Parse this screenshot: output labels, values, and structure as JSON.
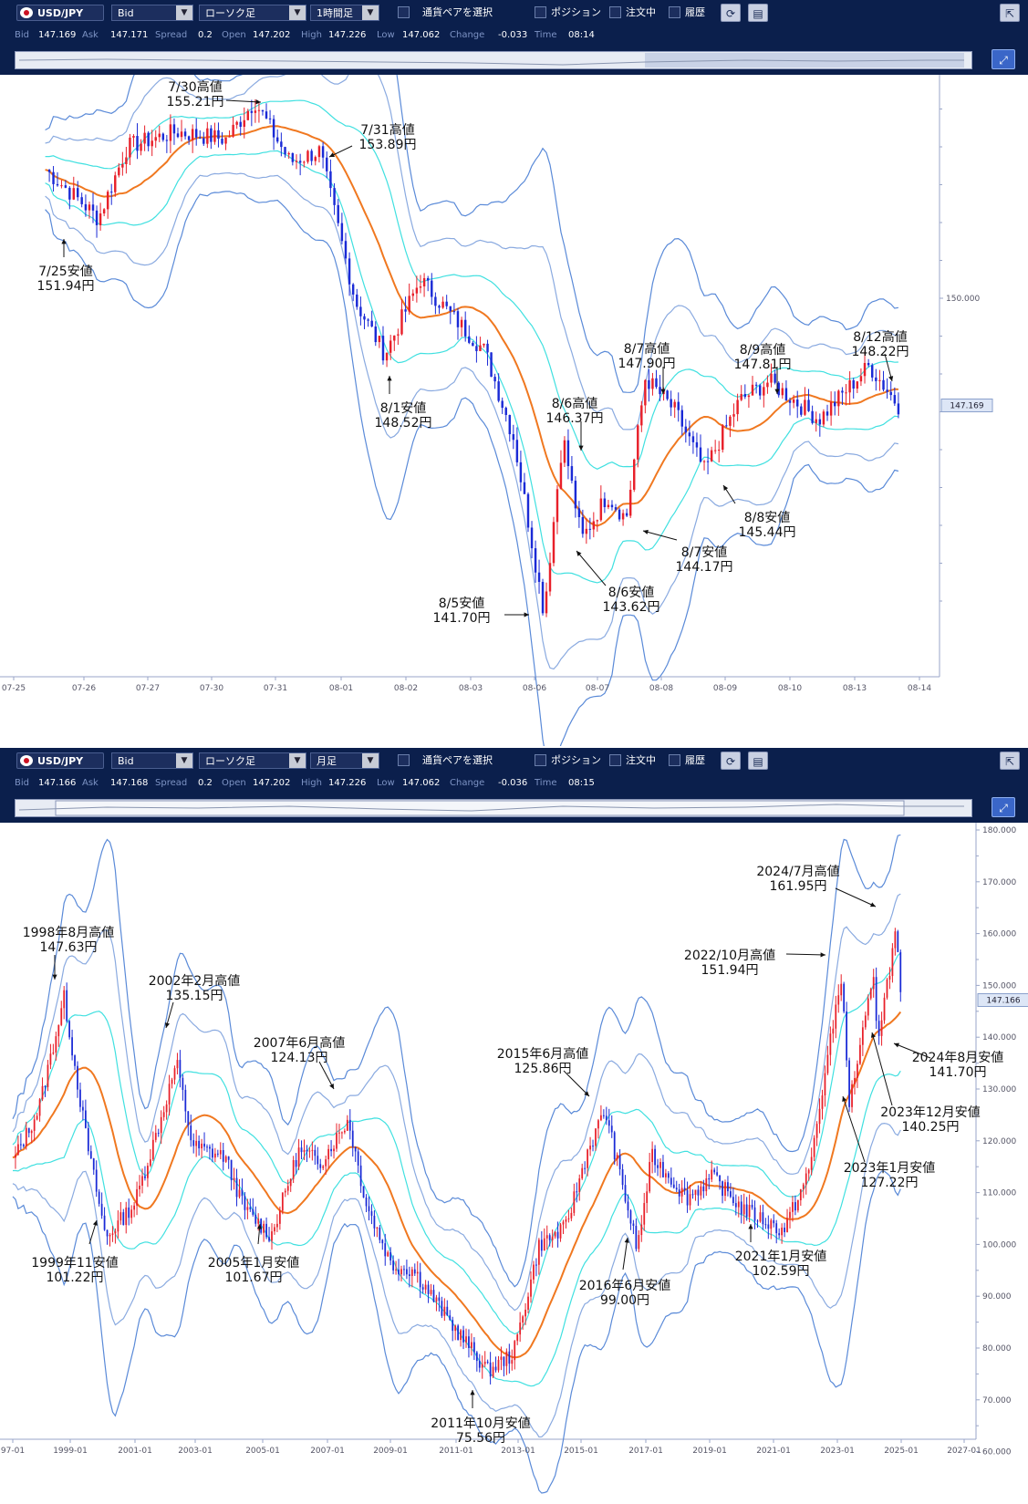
{
  "panels": [
    {
      "toolbar": {
        "pair": "USD/JPY",
        "price_type": "Bid",
        "chart_kind": "ローソク足",
        "timeframe": "1時間足",
        "select_pair_label": "通貨ペアを選択",
        "positions_label": "ポジション",
        "orders_label": "注文中",
        "history_label": "履歴"
      },
      "info": {
        "bid_label": "Bid",
        "bid": "147.169",
        "ask_label": "Ask",
        "ask": "147.171",
        "spread_label": "Spread",
        "spread": "0.2",
        "open_label": "Open",
        "open": "147.202",
        "high_label": "High",
        "high": "147.226",
        "low_label": "Low",
        "low": "147.062",
        "change_label": "Change",
        "change": "-0.033",
        "time_label": "Time",
        "time": "08:14"
      },
      "current_price": "147.169",
      "y_ticks": [
        "150.000"
      ],
      "x_ticks": [
        "07-25",
        "07-26",
        "07-27",
        "07-30",
        "07-31",
        "08-01",
        "08-02",
        "08-03",
        "08-06",
        "08-07",
        "08-08",
        "08-09",
        "08-10",
        "08-13",
        "08-14"
      ],
      "annotations": [
        {
          "l1": "7/30高値",
          "l2": "155.21円"
        },
        {
          "l1": "7/31高値",
          "l2": "153.89円"
        },
        {
          "l1": "7/25安値",
          "l2": "151.94円"
        },
        {
          "l1": "8/1安値",
          "l2": "148.52円"
        },
        {
          "l1": "8/6高値",
          "l2": "146.37円"
        },
        {
          "l1": "8/7高値",
          "l2": "147.90円"
        },
        {
          "l1": "8/9高値",
          "l2": "147.81円"
        },
        {
          "l1": "8/12高値",
          "l2": "148.22円"
        },
        {
          "l1": "8/8安値",
          "l2": "145.44円"
        },
        {
          "l1": "8/7安値",
          "l2": "144.17円"
        },
        {
          "l1": "8/6安値",
          "l2": "143.62円"
        },
        {
          "l1": "8/5安値",
          "l2": "141.70円"
        }
      ]
    },
    {
      "toolbar": {
        "pair": "USD/JPY",
        "price_type": "Bid",
        "chart_kind": "ローソク足",
        "timeframe": "月足",
        "select_pair_label": "通貨ペアを選択",
        "positions_label": "ポジション",
        "orders_label": "注文中",
        "history_label": "履歴"
      },
      "info": {
        "bid_label": "Bid",
        "bid": "147.166",
        "ask_label": "Ask",
        "ask": "147.168",
        "spread_label": "Spread",
        "spread": "0.2",
        "open_label": "Open",
        "open": "147.202",
        "high_label": "High",
        "high": "147.226",
        "low_label": "Low",
        "low": "147.062",
        "change_label": "Change",
        "change": "-0.036",
        "time_label": "Time",
        "time": "08:15"
      },
      "current_price": "147.166",
      "y_ticks": [
        "180.000",
        "170.000",
        "160.000",
        "150.000",
        "140.000",
        "130.000",
        "120.000",
        "110.000",
        "100.000",
        "90.000",
        "80.000",
        "70.000",
        "60.000"
      ],
      "x_ticks": [
        "97-01",
        "1999-01",
        "2001-01",
        "2003-01",
        "2005-01",
        "2007-01",
        "2009-01",
        "2011-01",
        "2013-01",
        "2015-01",
        "2017-01",
        "2019-01",
        "2021-01",
        "2023-01",
        "2025-01",
        "2027-01"
      ],
      "annotations": [
        {
          "l1": "1998年8月高値",
          "l2": "147.63円"
        },
        {
          "l1": "2002年2月高値",
          "l2": "135.15円"
        },
        {
          "l1": "2007年6月高値",
          "l2": "124.13円"
        },
        {
          "l1": "2015年6月高値",
          "l2": "125.86円"
        },
        {
          "l1": "2024/7月高値",
          "l2": "161.95円"
        },
        {
          "l1": "2022/10月高値",
          "l2": "151.94円"
        },
        {
          "l1": "1999年11安値",
          "l2": "101.22円"
        },
        {
          "l1": "2005年1月安値",
          "l2": "101.67円"
        },
        {
          "l1": "2011年10月安値",
          "l2": "75.56円"
        },
        {
          "l1": "2016年6月安値",
          "l2": "99.00円"
        },
        {
          "l1": "2021年1月安値",
          "l2": "102.59円"
        },
        {
          "l1": "2024年8月安値",
          "l2": "141.70円"
        },
        {
          "l1": "2023年12月安値",
          "l2": "140.25円"
        },
        {
          "l1": "2023年1月安値",
          "l2": "127.22円"
        }
      ]
    }
  ],
  "colors": {
    "toolbar_bg": "#0b1f4c",
    "up_candle": "#e8202a",
    "down_candle": "#1a2ad6",
    "ma": "#f07820",
    "band1": "#40e0e0",
    "band2": "#8aaae0",
    "band3": "#5a8ad8"
  },
  "chart_data": [
    {
      "type": "candlestick",
      "title": "USD/JPY 1時間足",
      "x": [
        "07-25",
        "07-26",
        "07-27",
        "07-30",
        "07-31",
        "08-01",
        "08-02",
        "08-03",
        "08-06",
        "08-07",
        "08-08",
        "08-09",
        "08-10",
        "08-13",
        "08-14"
      ],
      "close_path": [
        {
          "x": "07-25",
          "y": 153.4
        },
        {
          "x": "07-26",
          "y": 152.1
        },
        {
          "x": "07-26",
          "y": 154.0
        },
        {
          "x": "07-27",
          "y": 154.4
        },
        {
          "x": "07-30",
          "y": 154.2
        },
        {
          "x": "07-30",
          "y": 155.21
        },
        {
          "x": "07-31",
          "y": 153.6
        },
        {
          "x": "07-31",
          "y": 153.89
        },
        {
          "x": "08-01",
          "y": 149.9
        },
        {
          "x": "08-01",
          "y": 148.52
        },
        {
          "x": "08-02",
          "y": 150.5
        },
        {
          "x": "08-02",
          "y": 149.6
        },
        {
          "x": "08-03",
          "y": 148.6
        },
        {
          "x": "08-03",
          "y": 146.3
        },
        {
          "x": "08-06",
          "y": 141.7
        },
        {
          "x": "08-06",
          "y": 146.37
        },
        {
          "x": "08-06",
          "y": 143.62
        },
        {
          "x": "08-07",
          "y": 144.8
        },
        {
          "x": "08-07",
          "y": 144.17
        },
        {
          "x": "08-07",
          "y": 147.9
        },
        {
          "x": "08-08",
          "y": 147.0
        },
        {
          "x": "08-08",
          "y": 145.44
        },
        {
          "x": "08-09",
          "y": 147.3
        },
        {
          "x": "08-09",
          "y": 147.81
        },
        {
          "x": "08-10",
          "y": 146.8
        },
        {
          "x": "08-13",
          "y": 148.22
        },
        {
          "x": "08-13",
          "y": 147.169
        }
      ],
      "current": 147.169,
      "highs": [
        {
          "label": "7/30高値",
          "value": 155.21
        },
        {
          "label": "7/31高値",
          "value": 153.89
        },
        {
          "label": "8/6高値",
          "value": 146.37
        },
        {
          "label": "8/7高値",
          "value": 147.9
        },
        {
          "label": "8/9高値",
          "value": 147.81
        },
        {
          "label": "8/12高値",
          "value": 148.22
        }
      ],
      "lows": [
        {
          "label": "7/25安値",
          "value": 151.94
        },
        {
          "label": "8/1安値",
          "value": 148.52
        },
        {
          "label": "8/5安値",
          "value": 141.7
        },
        {
          "label": "8/6安値",
          "value": 143.62
        },
        {
          "label": "8/7安値",
          "value": 144.17
        },
        {
          "label": "8/8安値",
          "value": 145.44
        }
      ],
      "indicators": [
        "moving average",
        "bollinger bands (3 pairs)"
      ]
    },
    {
      "type": "candlestick",
      "title": "USD/JPY 月足",
      "x_range": [
        "1997-01",
        "2027-01"
      ],
      "ylim": [
        60,
        180
      ],
      "close_path": [
        {
          "x": 1997.0,
          "y": 116
        },
        {
          "x": 1997.8,
          "y": 126
        },
        {
          "x": 1998.6,
          "y": 147.63
        },
        {
          "x": 1999.3,
          "y": 120
        },
        {
          "x": 1999.9,
          "y": 101.22
        },
        {
          "x": 2000.8,
          "y": 108
        },
        {
          "x": 2001.6,
          "y": 124
        },
        {
          "x": 2002.1,
          "y": 135.15
        },
        {
          "x": 2002.6,
          "y": 119
        },
        {
          "x": 2003.6,
          "y": 117
        },
        {
          "x": 2004.2,
          "y": 107
        },
        {
          "x": 2005.05,
          "y": 101.67
        },
        {
          "x": 2005.9,
          "y": 118
        },
        {
          "x": 2006.6,
          "y": 116
        },
        {
          "x": 2007.45,
          "y": 124.13
        },
        {
          "x": 2008.0,
          "y": 108
        },
        {
          "x": 2008.8,
          "y": 96
        },
        {
          "x": 2009.5,
          "y": 95
        },
        {
          "x": 2010.5,
          "y": 86
        },
        {
          "x": 2011.8,
          "y": 75.56
        },
        {
          "x": 2012.6,
          "y": 79
        },
        {
          "x": 2013.4,
          "y": 100
        },
        {
          "x": 2014.2,
          "y": 103
        },
        {
          "x": 2014.9,
          "y": 118
        },
        {
          "x": 2015.45,
          "y": 125.86
        },
        {
          "x": 2016.45,
          "y": 99.0
        },
        {
          "x": 2016.9,
          "y": 117
        },
        {
          "x": 2018.0,
          "y": 109
        },
        {
          "x": 2018.8,
          "y": 113
        },
        {
          "x": 2019.7,
          "y": 107
        },
        {
          "x": 2021.0,
          "y": 102.59
        },
        {
          "x": 2021.8,
          "y": 114
        },
        {
          "x": 2022.8,
          "y": 151.94
        },
        {
          "x": 2023.05,
          "y": 127.22
        },
        {
          "x": 2023.8,
          "y": 151
        },
        {
          "x": 2023.95,
          "y": 140.25
        },
        {
          "x": 2024.55,
          "y": 161.95
        },
        {
          "x": 2024.6,
          "y": 141.7
        },
        {
          "x": 2024.65,
          "y": 147.166
        }
      ],
      "current": 147.166,
      "highs": [
        {
          "label": "1998年8月高値",
          "value": 147.63
        },
        {
          "label": "2002年2月高値",
          "value": 135.15
        },
        {
          "label": "2007年6月高値",
          "value": 124.13
        },
        {
          "label": "2015年6月高値",
          "value": 125.86
        },
        {
          "label": "2022/10月高値",
          "value": 151.94
        },
        {
          "label": "2024/7月高値",
          "value": 161.95
        }
      ],
      "lows": [
        {
          "label": "1999年11安値",
          "value": 101.22
        },
        {
          "label": "2005年1月安値",
          "value": 101.67
        },
        {
          "label": "2011年10月安値",
          "value": 75.56
        },
        {
          "label": "2016年6月安値",
          "value": 99.0
        },
        {
          "label": "2021年1月安値",
          "value": 102.59
        },
        {
          "label": "2023年1月安値",
          "value": 127.22
        },
        {
          "label": "2023年12月安値",
          "value": 140.25
        },
        {
          "label": "2024年8月安値",
          "value": 141.7
        }
      ],
      "indicators": [
        "moving average",
        "bollinger bands (3 pairs)"
      ]
    }
  ]
}
